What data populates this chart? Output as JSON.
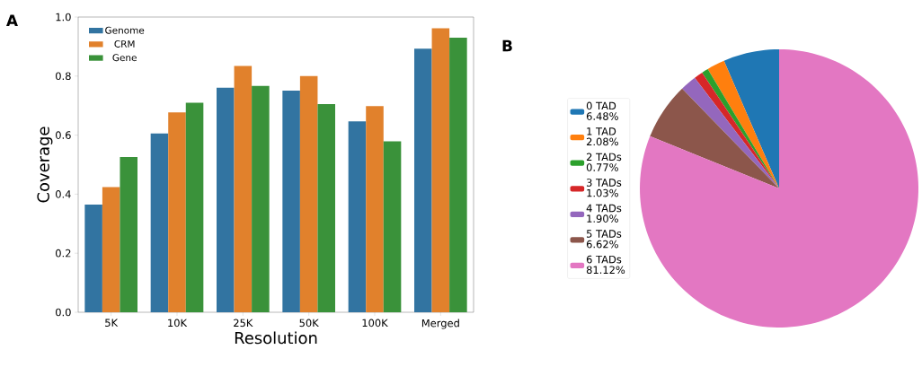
{
  "chart_data": [
    {
      "type": "bar",
      "title": "A",
      "xlabel": "Resolution",
      "ylabel": "Coverage",
      "categories": [
        "5K",
        "10K",
        "25K",
        "50K",
        "100K",
        "Merged"
      ],
      "series": [
        {
          "name": "Genome",
          "color": "#3274a1",
          "values": [
            0.365,
            0.606,
            0.761,
            0.751,
            0.647,
            0.893
          ]
        },
        {
          "name": "CRM",
          "color": "#e1812c",
          "values": [
            0.424,
            0.677,
            0.834,
            0.8,
            0.698,
            0.962
          ]
        },
        {
          "name": "Gene",
          "color": "#3a923a",
          "values": [
            0.526,
            0.71,
            0.767,
            0.705,
            0.579,
            0.93
          ]
        }
      ],
      "ylim": [
        0,
        1.0
      ],
      "yticks": [
        {
          "value": 0,
          "label": "0.0"
        },
        {
          "value": 0.2,
          "label": "0.2"
        },
        {
          "value": 0.4,
          "label": "0.4"
        },
        {
          "value": 0.6,
          "label": "0.6"
        },
        {
          "value": 0.8,
          "label": "0.8"
        },
        {
          "value": 1.0,
          "label": "1.0"
        }
      ],
      "legend": "top left",
      "grid": false
    },
    {
      "type": "pie",
      "title": "B",
      "categories": [
        "0 TAD",
        "1 TAD",
        "2 TADs",
        "3 TADs",
        "4 TADs",
        "5 TADs",
        "6 TADs"
      ],
      "values": [
        6.48,
        2.08,
        0.77,
        1.03,
        1.9,
        6.62,
        81.12
      ],
      "value_labels": [
        "6.48%",
        "2.08%",
        "0.77%",
        "1.03%",
        "1.90%",
        "6.62%",
        "81.12%"
      ],
      "colors": [
        "#1f77b4",
        "#ff7f0e",
        "#2ca02c",
        "#d62728",
        "#9467bd",
        "#8c564b",
        "#e377c2"
      ],
      "legend": "left"
    }
  ]
}
